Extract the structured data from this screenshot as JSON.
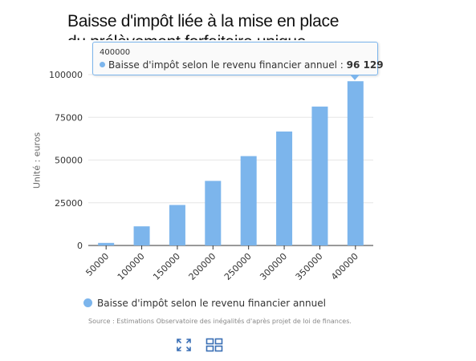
{
  "chart_data": {
    "type": "bar",
    "title": "Baisse d'impôt liée à la mise en place du prélèvement forfaitaire unique",
    "xlabel": "",
    "ylabel": "Unité : euros",
    "categories": [
      "50000",
      "100000",
      "150000",
      "200000",
      "250000",
      "300000",
      "350000",
      "400000"
    ],
    "series": [
      {
        "name": "Baisse d'impôt selon le revenu financier annuel",
        "values": [
          1500,
          11200,
          23700,
          37800,
          52300,
          66700,
          81300,
          96129
        ],
        "color": "#7cb5ec"
      }
    ],
    "ylim": [
      0,
      100000
    ],
    "yticks": [
      "0",
      "25000",
      "50000",
      "75000",
      "100000"
    ],
    "grid": true,
    "legend_position": "bottom-left"
  },
  "tooltip": {
    "x": "400000",
    "series_label": "Baisse d'impôt selon le revenu financier annuel :",
    "value": "96 129"
  },
  "source": "Source : Estimations Observatoire des inégalités d'après projet de loi de finances.",
  "icons": {
    "fullscreen": "expand-icon",
    "grid": "grid-view-icon"
  }
}
